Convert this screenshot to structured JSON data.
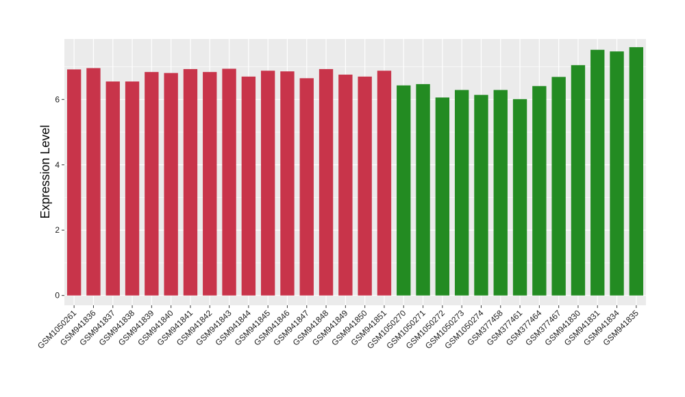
{
  "chart_data": {
    "type": "bar",
    "ylabel": "Expression Level",
    "xlabel": "",
    "ylim": [
      -0.3,
      7.85
    ],
    "yticks": [
      0,
      2,
      4,
      6
    ],
    "grid": true,
    "colors": {
      "group_a": "#c8344a",
      "group_b": "#238b22",
      "panel": "#ebebeb",
      "grid": "#ffffff"
    },
    "categories": [
      "GSM1050261",
      "GSM941836",
      "GSM941837",
      "GSM941838",
      "GSM941839",
      "GSM941840",
      "GSM941841",
      "GSM941842",
      "GSM941843",
      "GSM941844",
      "GSM941845",
      "GSM941846",
      "GSM941847",
      "GSM941848",
      "GSM941849",
      "GSM941850",
      "GSM941851",
      "GSM1050270",
      "GSM1050271",
      "GSM1050272",
      "GSM1050273",
      "GSM1050274",
      "GSM377458",
      "GSM377461",
      "GSM377464",
      "GSM377467",
      "GSM941830",
      "GSM941831",
      "GSM941834",
      "GSM941835"
    ],
    "values": [
      6.92,
      6.96,
      6.55,
      6.55,
      6.84,
      6.81,
      6.93,
      6.84,
      6.94,
      6.7,
      6.88,
      6.86,
      6.65,
      6.93,
      6.76,
      6.7,
      6.88,
      6.43,
      6.47,
      6.06,
      6.29,
      6.14,
      6.29,
      6.01,
      6.41,
      6.69,
      7.05,
      7.52,
      7.47,
      7.6
    ],
    "groups": [
      "a",
      "a",
      "a",
      "a",
      "a",
      "a",
      "a",
      "a",
      "a",
      "a",
      "a",
      "a",
      "a",
      "a",
      "a",
      "a",
      "a",
      "b",
      "b",
      "b",
      "b",
      "b",
      "b",
      "b",
      "b",
      "b",
      "b",
      "b",
      "b",
      "b"
    ]
  }
}
